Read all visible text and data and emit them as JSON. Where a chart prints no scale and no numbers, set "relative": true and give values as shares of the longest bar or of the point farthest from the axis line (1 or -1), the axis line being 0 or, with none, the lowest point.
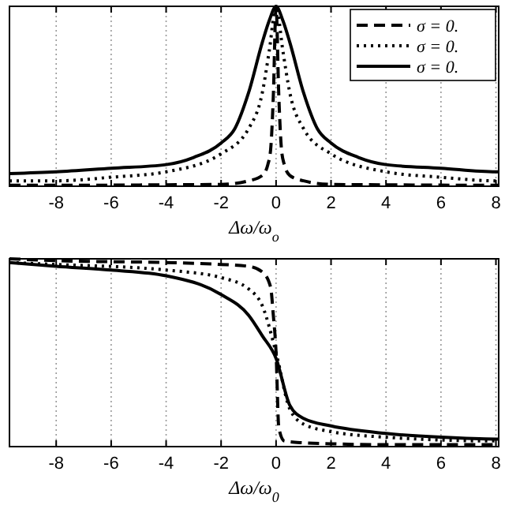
{
  "chart_data": [
    {
      "type": "line",
      "relative": true,
      "xlabel": "Δω/ω$_{o}$",
      "xlim": [
        -9.7,
        8.1
      ],
      "xticks": [
        -8,
        -6,
        -4,
        -2,
        0,
        2,
        4,
        6,
        8
      ],
      "tick_labels": "x",
      "grid": "x",
      "legend": "top right",
      "series": [
        {
          "name": "σ = 0.",
          "color": "#000000",
          "line_style": "dashed",
          "x": [
            -9.7,
            -8,
            -4,
            -2,
            -1,
            -0.5,
            -0.3,
            -0.2,
            -0.1,
            0,
            0.1,
            0.2,
            0.3,
            0.5,
            1,
            2,
            4,
            8,
            8.1
          ],
          "values": [
            0.005,
            0.005,
            0.008,
            0.01,
            0.03,
            0.06,
            0.12,
            0.2,
            0.5,
            1,
            0.5,
            0.2,
            0.12,
            0.06,
            0.03,
            0.01,
            0.008,
            0.005,
            0.005
          ]
        },
        {
          "name": "σ = 0.",
          "color": "#000000",
          "line_style": "dotted",
          "x": [
            -9.7,
            -8,
            -6,
            -4,
            -2,
            -1,
            -0.5,
            -0.25,
            0,
            0.25,
            0.5,
            1,
            2,
            4,
            6,
            8,
            8.1
          ],
          "values": [
            0.03,
            0.03,
            0.05,
            0.08,
            0.18,
            0.32,
            0.52,
            0.75,
            1,
            0.75,
            0.52,
            0.32,
            0.18,
            0.08,
            0.05,
            0.03,
            0.03
          ]
        },
        {
          "name": "σ = 0.",
          "color": "#000000",
          "line_style": "solid",
          "x": [
            -9.7,
            -8,
            -6,
            -4,
            -3,
            -2,
            -1.5,
            -1,
            -0.5,
            -0.25,
            0,
            0.25,
            0.5,
            1,
            1.5,
            2,
            3,
            4,
            6,
            8,
            8.1
          ],
          "values": [
            0.07,
            0.08,
            0.1,
            0.12,
            0.16,
            0.24,
            0.32,
            0.52,
            0.8,
            0.92,
            1,
            0.92,
            0.8,
            0.52,
            0.32,
            0.24,
            0.16,
            0.12,
            0.1,
            0.08,
            0.08
          ]
        }
      ]
    },
    {
      "type": "line",
      "relative": true,
      "xlabel": "Δω/ω$_{0}$",
      "xlim": [
        -9.7,
        8.1
      ],
      "xticks": [
        -8,
        -6,
        -4,
        -2,
        0,
        2,
        4,
        6,
        8
      ],
      "tick_labels": "x",
      "grid": "x",
      "series": [
        {
          "color": "#000000",
          "line_style": "dashed",
          "x": [
            -9.7,
            -8,
            -4,
            -2,
            -1,
            -0.5,
            -0.2,
            -0.1,
            0,
            0.1,
            0.3,
            1,
            2,
            4,
            8,
            8.1
          ],
          "values": [
            1,
            0.99,
            0.98,
            0.97,
            0.96,
            0.93,
            0.85,
            0.7,
            0.5,
            0.1,
            0.03,
            0.02,
            0.015,
            0.01,
            0.01,
            0.01
          ]
        },
        {
          "color": "#000000",
          "line_style": "dotted",
          "x": [
            -9.7,
            -8,
            -4,
            -2,
            -1,
            -0.5,
            0,
            0.5,
            1,
            2,
            4,
            8,
            8.1
          ],
          "values": [
            0.98,
            0.97,
            0.94,
            0.9,
            0.84,
            0.75,
            0.5,
            0.2,
            0.12,
            0.08,
            0.05,
            0.03,
            0.03
          ]
        },
        {
          "color": "#000000",
          "line_style": "solid",
          "x": [
            -9.7,
            -8,
            -6,
            -4,
            -2,
            -1,
            -0.5,
            0,
            0.5,
            1,
            2,
            4,
            6,
            8,
            8.1
          ],
          "values": [
            0.98,
            0.96,
            0.94,
            0.91,
            0.81,
            0.7,
            0.59,
            0.47,
            0.22,
            0.15,
            0.11,
            0.07,
            0.05,
            0.04,
            0.04
          ]
        }
      ]
    }
  ]
}
